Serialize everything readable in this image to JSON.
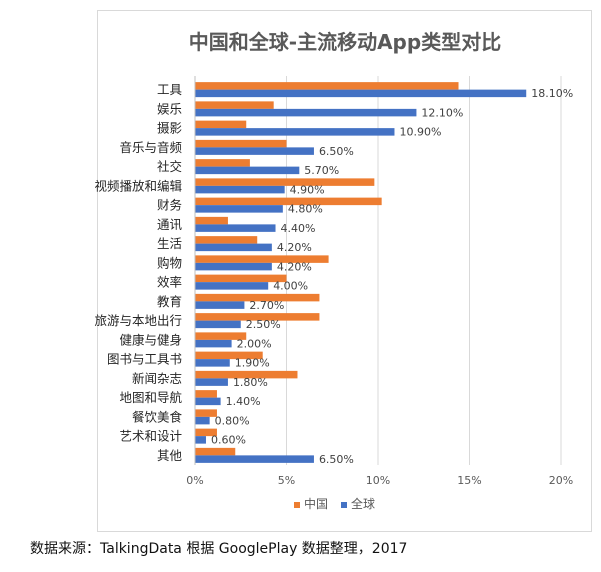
{
  "chart_data": {
    "type": "bar",
    "orientation": "horizontal",
    "title": "中国和全球-主流移动App类型对比",
    "categories": [
      "工具",
      "娱乐",
      "摄影",
      "音乐与音频",
      "社交",
      "视频播放和编辑",
      "财务",
      "通讯",
      "生活",
      "购物",
      "效率",
      "教育",
      "旅游与本地出行",
      "健康与健身",
      "图书与工具书",
      "新闻杂志",
      "地图和导航",
      "餐饮美食",
      "艺术和设计",
      "其他"
    ],
    "series": [
      {
        "name": "中国",
        "color": "#ed7d31",
        "values": [
          14.4,
          4.3,
          2.8,
          5.0,
          3.0,
          9.8,
          10.2,
          1.8,
          3.4,
          7.3,
          5.0,
          6.8,
          6.8,
          2.8,
          3.7,
          5.6,
          1.2,
          1.2,
          1.2,
          2.2
        ]
      },
      {
        "name": "全球",
        "color": "#4472c4",
        "values": [
          18.1,
          12.1,
          10.9,
          6.5,
          5.7,
          4.9,
          4.8,
          4.4,
          4.2,
          4.2,
          4.0,
          2.7,
          2.5,
          2.0,
          1.9,
          1.8,
          1.4,
          0.8,
          0.6,
          6.5
        ],
        "labels": [
          "18.10%",
          "12.10%",
          "10.90%",
          "6.50%",
          "5.70%",
          "4.90%",
          "4.80%",
          "4.40%",
          "4.20%",
          "4.20%",
          "4.00%",
          "2.70%",
          "2.50%",
          "2.00%",
          "1.90%",
          "1.80%",
          "1.40%",
          "0.80%",
          "0.60%",
          "6.50%"
        ]
      }
    ],
    "x_ticks": [
      0,
      5,
      10,
      15,
      20
    ],
    "x_tick_labels": [
      "0%",
      "5%",
      "10%",
      "15%",
      "20%"
    ],
    "xlim": [
      0,
      20
    ],
    "grid": "vertical",
    "legend": "bottom-center"
  },
  "source_note": "数据来源：TalkingData 根据 GooglePlay 数据整理，2017"
}
